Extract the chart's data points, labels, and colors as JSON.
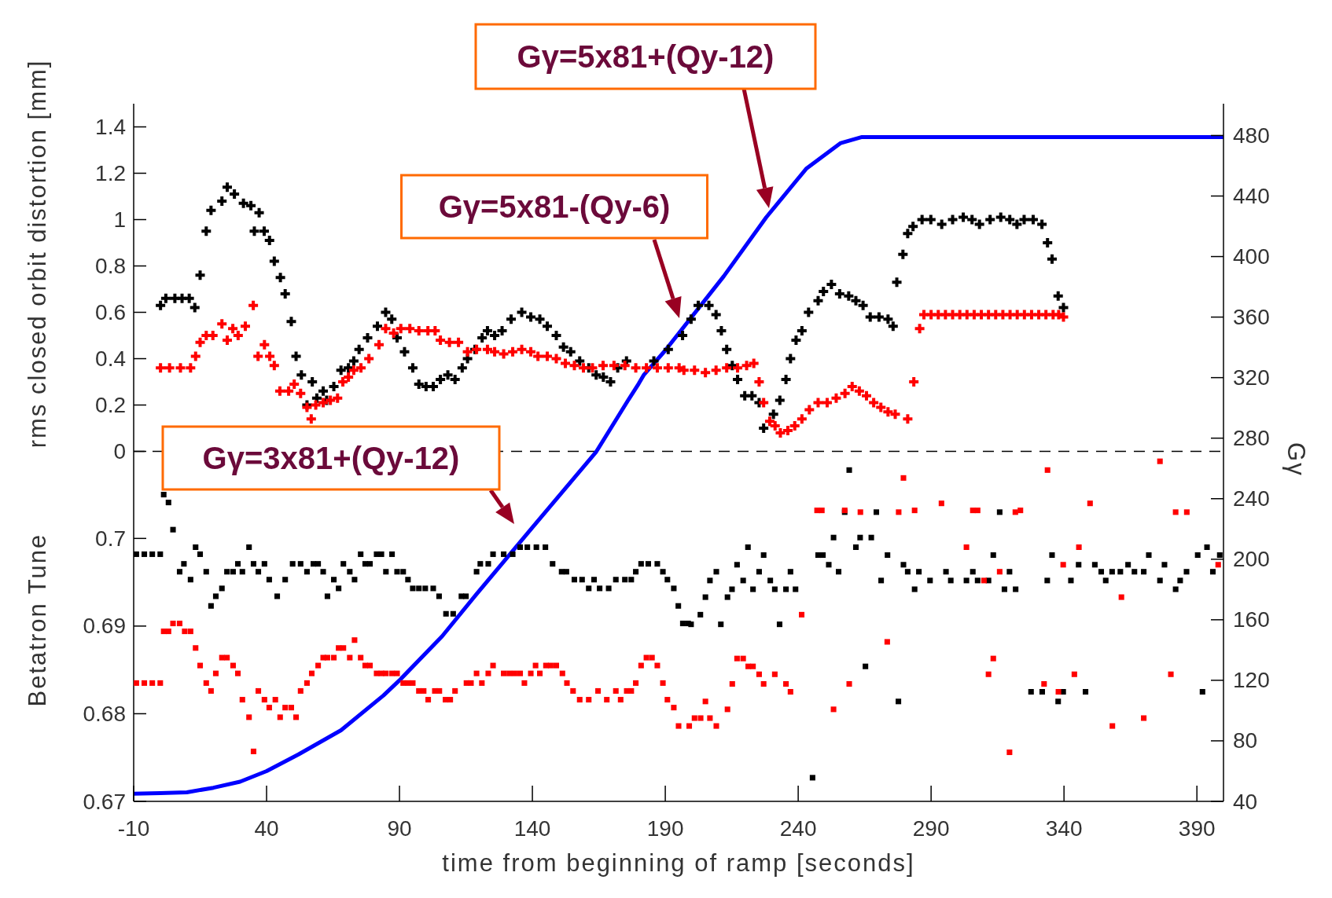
{
  "chart_data": {
    "type": "scatter",
    "xlabel": "time from beginning of ramp [seconds]",
    "ylabel": "rms closed orbit distortion [mm]",
    "y3label": "Betatron Tune",
    "y2label": "Gγ",
    "xlim": [
      -10,
      400
    ],
    "xticks": [
      -10,
      40,
      90,
      140,
      190,
      240,
      290,
      340,
      390
    ],
    "ylim": [
      -1.51,
      1.5
    ],
    "yticks": [
      0,
      0.2,
      0.4,
      0.6,
      0.8,
      1,
      1.2,
      1.4
    ],
    "y3lim": [
      0.67,
      0.7496
    ],
    "y3ticks": [
      0.67,
      0.68,
      0.69,
      0.7
    ],
    "y2lim": [
      40,
      501
    ],
    "y2ticks": [
      40,
      80,
      120,
      160,
      200,
      240,
      280,
      320,
      360,
      400,
      440,
      480
    ],
    "ref_lines": [
      {
        "axis": "y",
        "value": 0,
        "color": "#000000",
        "line_style": "dashed"
      }
    ],
    "annotations": [
      "Gγ=5x81+(Qy-12)",
      "Gγ=5x81-(Qy-6)",
      "Gγ=3x81+(Qy-12)"
    ],
    "series": [
      {
        "axis": "y",
        "marker": "cross",
        "color": "#000000",
        "x": [
          0.1,
          2.1,
          5.5,
          8.2,
          10.9,
          13,
          15,
          17.3,
          19.1,
          23.2,
          25.2,
          27.9,
          31.3,
          34.1,
          35.4,
          37.2,
          39.1,
          41.1,
          42.9,
          45.2,
          47,
          49.3,
          51.1,
          53.1,
          55.2,
          57.2,
          58.9,
          61.3,
          62.6,
          65.3,
          68,
          70.8,
          72.8,
          74.8,
          78,
          81.7,
          84.8,
          87.1,
          89.1,
          91.9,
          95,
          97.3,
          100,
          102.7,
          105.4,
          108.2,
          110.9,
          113.6,
          115.6,
          118.4,
          121.1,
          123.1,
          125.8,
          128.6,
          132,
          136,
          139.4,
          142.8,
          145.6,
          149,
          151.7,
          154.4,
          157.8,
          161.2,
          164,
          166.7,
          169.4,
          172.1,
          175.4,
          185.7,
          191.1,
          196.5,
          199.7,
          202.4,
          206.4,
          209.1,
          211.1,
          213.1,
          215.2,
          217.2,
          219.9,
          222.6,
          225.3,
          227,
          230.7,
          233.1,
          235.4,
          237.1,
          239.2,
          241.4,
          243.9,
          247.5,
          249.5,
          252.5,
          255.6,
          259,
          261.7,
          264.4,
          267.1,
          270.4,
          273.8,
          275.7,
          277.1,
          279.4,
          281.2,
          283.2,
          286.6,
          289.9,
          294,
          298.1,
          302.1,
          305.4,
          308.2,
          312.2,
          316.2,
          319.6,
          322.3,
          325,
          328.4,
          331.7,
          333.8,
          335.5,
          337.8,
          339.8
        ],
        "values": [
          0.63,
          0.66,
          0.66,
          0.66,
          0.66,
          0.62,
          0.76,
          0.95,
          1.04,
          1.08,
          1.14,
          1.11,
          1.07,
          1.06,
          0.95,
          1.03,
          0.95,
          0.91,
          0.82,
          0.75,
          0.68,
          0.56,
          0.41,
          0.33,
          0.2,
          0.3,
          0.23,
          0.26,
          0.22,
          0.28,
          0.35,
          0.36,
          0.39,
          0.44,
          0.49,
          0.54,
          0.6,
          0.57,
          0.49,
          0.43,
          0.36,
          0.29,
          0.28,
          0.28,
          0.31,
          0.33,
          0.31,
          0.36,
          0.4,
          0.44,
          0.49,
          0.52,
          0.5,
          0.52,
          0.57,
          0.6,
          0.58,
          0.57,
          0.54,
          0.5,
          0.45,
          0.43,
          0.39,
          0.36,
          0.33,
          0.32,
          0.3,
          0.36,
          0.39,
          0.39,
          0.44,
          0.5,
          0.57,
          0.63,
          0.63,
          0.59,
          0.52,
          0.44,
          0.37,
          0.31,
          0.24,
          0.24,
          0.21,
          0.1,
          0.16,
          0.22,
          0.31,
          0.4,
          0.48,
          0.52,
          0.6,
          0.65,
          0.69,
          0.72,
          0.68,
          0.67,
          0.65,
          0.63,
          0.58,
          0.58,
          0.57,
          0.54,
          0.73,
          0.85,
          0.94,
          0.97,
          1,
          1,
          0.98,
          1,
          1.01,
          1,
          0.98,
          1,
          1.01,
          1,
          0.98,
          1,
          1,
          0.98,
          0.9,
          0.83,
          0.67,
          0.62
        ]
      },
      {
        "axis": "y",
        "marker": "cross",
        "color": "#ff0000",
        "x": [
          0.1,
          3.5,
          7.6,
          11.4,
          13.3,
          15,
          17.3,
          19.8,
          23.2,
          25.2,
          27.3,
          29.3,
          32,
          35,
          36.8,
          39.2,
          41.2,
          42.9,
          45,
          48.3,
          50.4,
          52.8,
          55.2,
          56.8,
          58.5,
          61.3,
          64,
          66.7,
          68.7,
          70.8,
          72.8,
          75.5,
          78.5,
          82.3,
          84.8,
          87.8,
          90.5,
          93.9,
          97.3,
          100.7,
          103.4,
          105.4,
          108.8,
          112.2,
          115.6,
          119,
          123.1,
          125.8,
          129.2,
          132.6,
          136,
          139.4,
          142.1,
          145.6,
          149,
          152.4,
          155.8,
          159.2,
          162.6,
          166.6,
          170.7,
          174.8,
          178.9,
          182.9,
          187,
          191.1,
          195.2,
          197,
          201,
          205.1,
          209.1,
          213.1,
          217.2,
          220.6,
          223.3,
          225.3,
          227,
          229.3,
          231.3,
          233.3,
          236.1,
          238.7,
          241.4,
          244.2,
          247.5,
          250.9,
          254.3,
          257.6,
          260.3,
          263,
          265.7,
          268.4,
          271.1,
          273.8,
          276.5,
          281.2,
          283.5,
          285.7,
          287.3,
          290,
          292.7,
          295.4,
          298.1,
          300.8,
          303.5,
          306.2,
          308.9,
          311.6,
          314.3,
          317,
          319.7,
          322.4,
          325.1,
          327.8,
          330.5,
          333.2,
          335.9,
          338,
          339.8
        ],
        "values": [
          0.36,
          0.36,
          0.36,
          0.36,
          0.41,
          0.47,
          0.5,
          0.5,
          0.55,
          0.48,
          0.53,
          0.5,
          0.54,
          0.63,
          0.41,
          0.46,
          0.41,
          0.37,
          0.26,
          0.26,
          0.29,
          0.25,
          0.19,
          0.14,
          0.2,
          0.21,
          0.22,
          0.23,
          0.3,
          0.32,
          0.35,
          0.36,
          0.4,
          0.46,
          0.53,
          0.51,
          0.53,
          0.53,
          0.52,
          0.52,
          0.52,
          0.48,
          0.47,
          0.47,
          0.43,
          0.44,
          0.44,
          0.43,
          0.42,
          0.43,
          0.44,
          0.43,
          0.41,
          0.41,
          0.4,
          0.38,
          0.37,
          0.36,
          0.36,
          0.37,
          0.37,
          0.37,
          0.36,
          0.36,
          0.36,
          0.36,
          0.36,
          0.35,
          0.35,
          0.34,
          0.35,
          0.36,
          0.36,
          0.37,
          0.38,
          0.3,
          0.21,
          0.13,
          0.11,
          0.08,
          0.09,
          0.11,
          0.14,
          0.18,
          0.21,
          0.21,
          0.23,
          0.25,
          0.28,
          0.26,
          0.24,
          0.21,
          0.19,
          0.17,
          0.16,
          0.14,
          0.3,
          0.53,
          0.59,
          0.59,
          0.59,
          0.59,
          0.59,
          0.59,
          0.59,
          0.59,
          0.59,
          0.59,
          0.59,
          0.59,
          0.59,
          0.59,
          0.59,
          0.59,
          0.59,
          0.59,
          0.59,
          0.59,
          0.58
        ]
      },
      {
        "axis": "y3",
        "marker": "square",
        "color": "#000000",
        "x": [
          -9,
          -6,
          -3,
          0,
          1.3,
          3.1,
          4.8,
          7.3,
          8.9,
          11.4,
          13.3,
          15,
          17.3,
          19.1,
          20.9,
          23.2,
          25.1,
          27.4,
          29.2,
          30.9,
          33.4,
          35.1,
          36.9,
          39.2,
          41,
          44,
          47,
          49.8,
          52.8,
          55.2,
          57.6,
          59.4,
          61.3,
          62.9,
          65.3,
          67.1,
          68.9,
          71.3,
          73.1,
          75.4,
          77.1,
          78.9,
          81.4,
          83.2,
          84.9,
          87.2,
          89.1,
          91.4,
          93.2,
          95,
          97.3,
          99.7,
          102.7,
          104.9,
          107.5,
          110.2,
          113.3,
          115,
          119,
          120.4,
          123.4,
          125.2,
          129.2,
          132.6,
          135.4,
          138.1,
          141.5,
          144.9,
          147.6,
          151,
          152.8,
          155.8,
          158.7,
          161.2,
          163.2,
          165.3,
          168.7,
          171.4,
          174.8,
          177.2,
          178.9,
          180.9,
          183.6,
          187,
          189.1,
          190.8,
          193.2,
          194.9,
          196.6,
          198.6,
          199.7,
          203.2,
          205.1,
          206.8,
          209.2,
          210.9,
          213.4,
          215.1,
          217,
          219.3,
          221.1,
          223,
          225.3,
          227,
          229.5,
          231.2,
          233,
          235.4,
          237.1,
          239,
          245.4,
          247.5,
          249.3,
          251.5,
          253.3,
          255.2,
          257.5,
          259.2,
          261.7,
          263.3,
          265.3,
          267.5,
          269.4,
          271.2,
          273.6,
          277.7,
          279.6,
          281.2,
          283.8,
          285.4,
          289.6,
          295.6,
          297.4,
          303.3,
          305.7,
          307.5,
          311.6,
          313.4,
          315.8,
          317.6,
          319.5,
          321.8,
          327.6,
          331.8,
          333.7,
          335.5,
          337.8,
          339.7,
          342.6,
          345.5,
          348.1,
          351.6,
          354,
          355.7,
          358.1,
          361.2,
          364.1,
          366.5,
          370,
          371.9,
          376.1,
          377.8,
          382,
          383.7,
          386.1,
          390.3,
          392.1,
          393.8,
          396,
          398.6
        ],
        "values": [
          0.6982,
          0.6982,
          0.6982,
          0.6982,
          0.705,
          0.7041,
          0.701,
          0.6962,
          0.6971,
          0.6953,
          0.699,
          0.6982,
          0.6962,
          0.6923,
          0.6934,
          0.6943,
          0.6962,
          0.6962,
          0.6971,
          0.6962,
          0.699,
          0.6971,
          0.6962,
          0.6971,
          0.6953,
          0.6934,
          0.6953,
          0.6971,
          0.6971,
          0.6962,
          0.6971,
          0.6971,
          0.6962,
          0.6934,
          0.6953,
          0.6943,
          0.6971,
          0.6962,
          0.6953,
          0.6982,
          0.6971,
          0.6971,
          0.6982,
          0.6982,
          0.6962,
          0.6982,
          0.6962,
          0.6962,
          0.6953,
          0.6943,
          0.6943,
          0.6943,
          0.6943,
          0.6934,
          0.6914,
          0.6914,
          0.6934,
          0.6934,
          0.6962,
          0.6971,
          0.6971,
          0.6982,
          0.6982,
          0.6982,
          0.699,
          0.699,
          0.699,
          0.699,
          0.6971,
          0.6962,
          0.6962,
          0.6953,
          0.6953,
          0.6943,
          0.6953,
          0.6943,
          0.6943,
          0.6953,
          0.6953,
          0.6953,
          0.6962,
          0.6971,
          0.6971,
          0.6971,
          0.6962,
          0.6953,
          0.6943,
          0.6923,
          0.6903,
          0.6903,
          0.6902,
          0.6913,
          0.6933,
          0.6952,
          0.6962,
          0.6902,
          0.6933,
          0.6942,
          0.697,
          0.6952,
          0.699,
          0.6942,
          0.6962,
          0.6981,
          0.6952,
          0.6942,
          0.6902,
          0.6942,
          0.6962,
          0.6942,
          0.6727,
          0.6981,
          0.6981,
          0.697,
          0.7001,
          0.6962,
          0.703,
          0.7078,
          0.699,
          0.7001,
          0.6854,
          0.7001,
          0.703,
          0.6952,
          0.6981,
          0.6814,
          0.697,
          0.6962,
          0.6942,
          0.6962,
          0.6952,
          0.6962,
          0.6952,
          0.6952,
          0.6962,
          0.6952,
          0.6952,
          0.6981,
          0.703,
          0.6942,
          0.6962,
          0.6942,
          0.6825,
          0.6825,
          0.6952,
          0.6981,
          0.6814,
          0.6825,
          0.6952,
          0.697,
          0.6825,
          0.697,
          0.6962,
          0.6952,
          0.6962,
          0.6962,
          0.697,
          0.6962,
          0.6962,
          0.6981,
          0.6952,
          0.697,
          0.6942,
          0.6952,
          0.6962,
          0.6981,
          0.6825,
          0.699,
          0.6962,
          0.6981
        ]
      },
      {
        "axis": "y3",
        "marker": "square",
        "color": "#ff0000",
        "x": [
          -9,
          -6,
          -3,
          0,
          1.3,
          3.1,
          4.8,
          7.3,
          9.2,
          11.4,
          13.3,
          15,
          17.3,
          19.1,
          20.9,
          23.2,
          25.1,
          27.4,
          29.2,
          30.9,
          33.4,
          35.1,
          36.9,
          39.2,
          41,
          43.3,
          45.1,
          47,
          49.3,
          51.1,
          52.8,
          55.2,
          57,
          59.4,
          61.3,
          62.9,
          65.3,
          67.1,
          68.9,
          71.3,
          73.1,
          75.4,
          77.1,
          78.9,
          81.4,
          83.2,
          84.9,
          87.2,
          89.1,
          91.4,
          93.2,
          95,
          97.3,
          99.1,
          100.8,
          103.3,
          105,
          107.3,
          109.1,
          110.9,
          115.2,
          116.9,
          119,
          121,
          123.4,
          125.2,
          129.2,
          131.3,
          133.3,
          135.4,
          137,
          139.4,
          141.2,
          142.8,
          145.1,
          146.9,
          149,
          151.3,
          153,
          155.3,
          157.8,
          161.2,
          164.7,
          168,
          171.4,
          173.2,
          175.5,
          177.2,
          178.9,
          180.9,
          182.9,
          185,
          187,
          189.1,
          190.8,
          193.2,
          195,
          199,
          201,
          203.3,
          205.1,
          206.8,
          209.2,
          213.4,
          215.2,
          217,
          219.3,
          221.2,
          223,
          225.3,
          227,
          231.2,
          235.4,
          237.1,
          241.3,
          247.1,
          248.9,
          253.3,
          257.5,
          259.2,
          263.4,
          273.5,
          277.8,
          279.6,
          283.8,
          293.9,
          303.3,
          305.7,
          307.5,
          309.9,
          311.6,
          313.4,
          315.8,
          319.5,
          321.7,
          323.6,
          332.5,
          333.8,
          337.9,
          339.7,
          343.9,
          345.6,
          349.8,
          358.2,
          361.6,
          370,
          376.1,
          380.2,
          382,
          386.2,
          398
        ],
        "values": [
          0.6835,
          0.6835,
          0.6835,
          0.6835,
          0.6894,
          0.6894,
          0.6903,
          0.6903,
          0.6894,
          0.6894,
          0.6875,
          0.6855,
          0.6835,
          0.6826,
          0.6846,
          0.6864,
          0.6864,
          0.6855,
          0.6846,
          0.6816,
          0.6796,
          0.6757,
          0.6826,
          0.6816,
          0.6807,
          0.6816,
          0.6796,
          0.6807,
          0.6807,
          0.6796,
          0.6826,
          0.6835,
          0.6846,
          0.6855,
          0.6864,
          0.6864,
          0.6864,
          0.6875,
          0.6875,
          0.6864,
          0.6884,
          0.6864,
          0.6855,
          0.6855,
          0.6846,
          0.6846,
          0.6846,
          0.6846,
          0.6846,
          0.6835,
          0.6835,
          0.6835,
          0.6826,
          0.6826,
          0.6816,
          0.6826,
          0.6826,
          0.6816,
          0.6816,
          0.6826,
          0.6835,
          0.6835,
          0.6846,
          0.6835,
          0.6846,
          0.6855,
          0.6846,
          0.6846,
          0.6846,
          0.6846,
          0.6835,
          0.6846,
          0.6855,
          0.6846,
          0.6855,
          0.6855,
          0.6855,
          0.6846,
          0.6835,
          0.6826,
          0.6816,
          0.6816,
          0.6826,
          0.6816,
          0.6826,
          0.6816,
          0.6826,
          0.6826,
          0.6835,
          0.6855,
          0.6864,
          0.6864,
          0.6855,
          0.6835,
          0.6816,
          0.6807,
          0.6786,
          0.6786,
          0.6795,
          0.6795,
          0.6814,
          0.6795,
          0.6786,
          0.6805,
          0.6834,
          0.6863,
          0.6863,
          0.6854,
          0.6854,
          0.6845,
          0.6834,
          0.6845,
          0.6834,
          0.6825,
          0.6913,
          0.7032,
          0.7032,
          0.6805,
          0.7032,
          0.6834,
          0.703,
          0.6882,
          0.703,
          0.7069,
          0.7032,
          0.704,
          0.699,
          0.7032,
          0.7032,
          0.6952,
          0.6845,
          0.6863,
          0.6962,
          0.6756,
          0.703,
          0.7032,
          0.6834,
          0.7078,
          0.6825,
          0.697,
          0.6845,
          0.699,
          0.704,
          0.6786,
          0.6933,
          0.6795,
          0.7088,
          0.6845,
          0.703,
          0.703,
          0.697
        ]
      },
      {
        "type": "line",
        "axis": "y2",
        "marker": "none",
        "line_style": "solid",
        "color": "#0000ff",
        "x": [
          -10,
          0,
          10,
          20,
          30,
          40,
          52,
          68,
          84,
          90,
          106,
          119,
          140,
          164,
          176,
          180,
          182,
          190,
          212,
          228,
          243,
          256,
          264,
          400
        ],
        "values": [
          45,
          45.5,
          46,
          49,
          53,
          60,
          71,
          87,
          110,
          120,
          149,
          177,
          221,
          271,
          305,
          316,
          322,
          338,
          387,
          426,
          458,
          475,
          479,
          479
        ]
      }
    ]
  }
}
